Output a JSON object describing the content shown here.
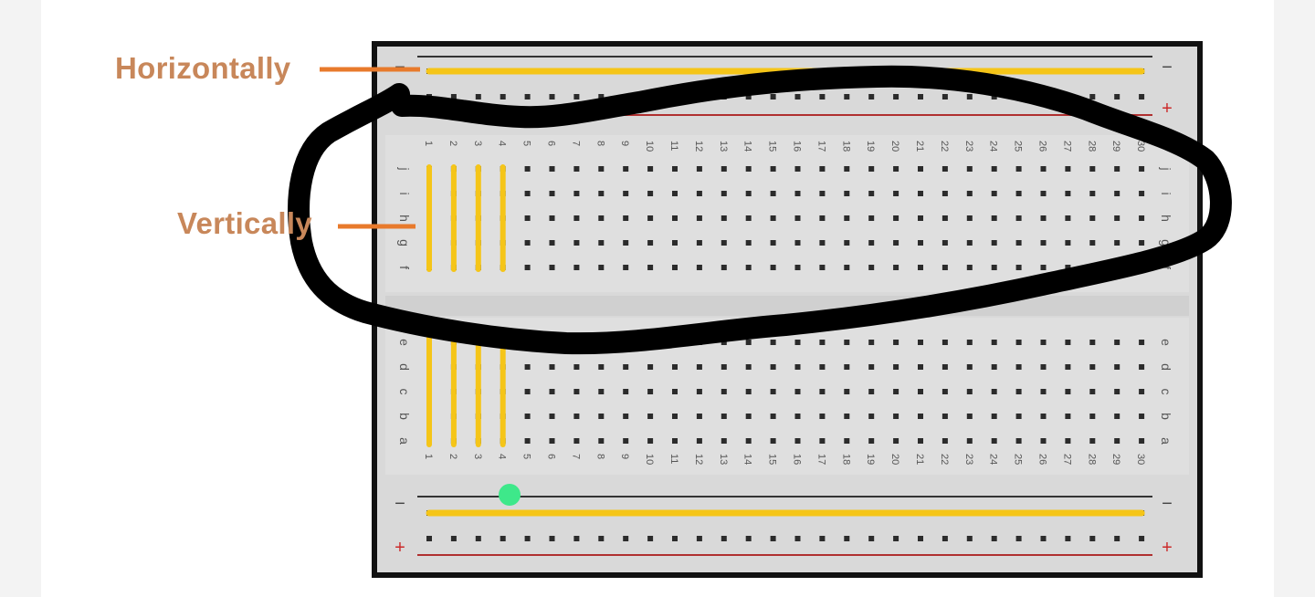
{
  "annotations": {
    "horizontal": "Horizontally",
    "vertical": "Vertically"
  },
  "breadboard": {
    "columns": 30,
    "top_rows": [
      "j",
      "i",
      "h",
      "g",
      "f"
    ],
    "bottom_rows": [
      "e",
      "d",
      "c",
      "b",
      "a"
    ],
    "rail_symbols": {
      "minus": "−",
      "plus": "+"
    },
    "highlighted_columns": [
      1,
      2,
      3,
      4
    ],
    "highlighted_rail": "top-minus"
  },
  "colors": {
    "board": "#d9d9d9",
    "board_border": "#111111",
    "hole": "#2b2b2b",
    "wire": "#f5c518",
    "minus_line": "#333333",
    "plus_line": "#b03030",
    "plus_symbol": "#cc2b2b",
    "annotation_text": "#c8875a",
    "arrow": "#e87a2c",
    "scribble": "#000000",
    "marker": "#3ee88a"
  }
}
